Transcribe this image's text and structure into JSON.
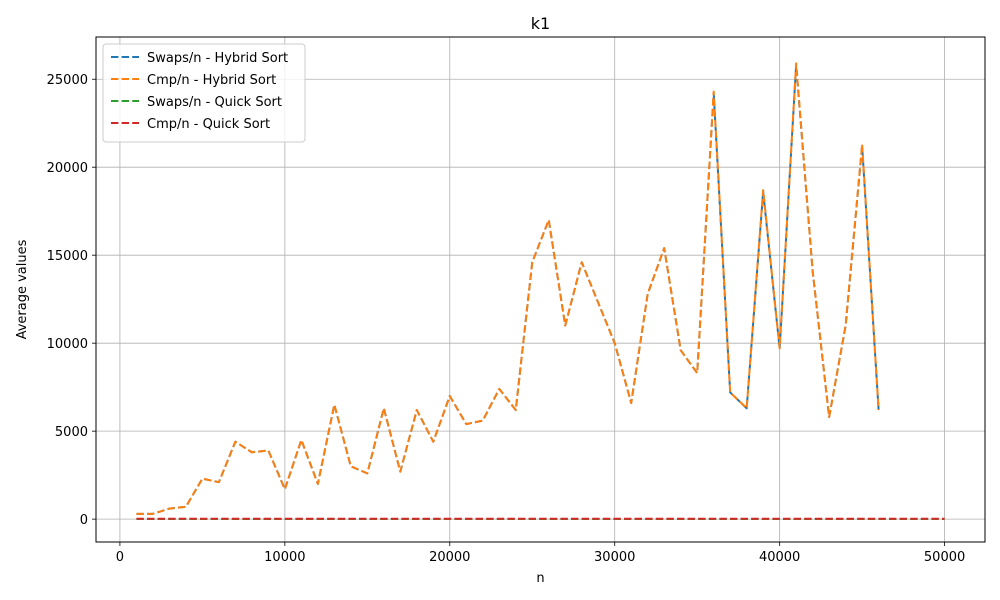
{
  "chart_data": {
    "type": "line",
    "title": "k1",
    "xlabel": "n",
    "ylabel": "Average values",
    "xlim": [
      -1450,
      52450
    ],
    "ylim": [
      -1300,
      27400
    ],
    "xticks": [
      0,
      10000,
      20000,
      30000,
      40000,
      50000
    ],
    "yticks": [
      0,
      5000,
      10000,
      15000,
      20000,
      25000
    ],
    "grid": true,
    "legend_position": "top-left",
    "series": [
      {
        "name": "Swaps/n - Hybrid Sort",
        "color": "#1f77b4",
        "style": "dashed",
        "x": [
          1000,
          2000,
          3000,
          4000,
          5000,
          6000,
          7000,
          8000,
          9000,
          10000,
          11000,
          12000,
          13000,
          14000,
          15000,
          16000,
          17000,
          18000,
          19000,
          20000,
          21000,
          22000,
          23000,
          24000,
          25000,
          26000,
          27000,
          28000,
          29000,
          30000,
          31000,
          32000,
          33000,
          34000,
          35000,
          36000,
          37000,
          38000,
          39000,
          40000,
          41000,
          42000,
          43000,
          44000,
          45000,
          46000
        ],
        "y": [
          300,
          300,
          600,
          700,
          2300,
          2100,
          4400,
          3800,
          3900,
          1700,
          4500,
          2000,
          6500,
          3000,
          2600,
          6300,
          2700,
          6200,
          4400,
          7000,
          5400,
          5600,
          7400,
          6200,
          14600,
          17000,
          11000,
          14600,
          12300,
          10000,
          6600,
          12800,
          15400,
          9600,
          8300,
          24200,
          7200,
          6300,
          18600,
          9700,
          25800,
          14100,
          5800,
          11000,
          21200,
          6200
        ]
      },
      {
        "name": "Cmp/n - Hybrid Sort",
        "color": "#ff7f0e",
        "style": "dashed",
        "x": [
          1000,
          2000,
          3000,
          4000,
          5000,
          6000,
          7000,
          8000,
          9000,
          10000,
          11000,
          12000,
          13000,
          14000,
          15000,
          16000,
          17000,
          18000,
          19000,
          20000,
          21000,
          22000,
          23000,
          24000,
          25000,
          26000,
          27000,
          28000,
          29000,
          30000,
          31000,
          32000,
          33000,
          34000,
          35000,
          36000,
          37000,
          38000,
          39000,
          40000,
          41000,
          42000,
          43000,
          44000,
          45000,
          46000
        ],
        "y": [
          300,
          300,
          600,
          700,
          2300,
          2100,
          4400,
          3800,
          3900,
          1700,
          4500,
          2000,
          6500,
          3000,
          2600,
          6300,
          2700,
          6200,
          4400,
          7000,
          5400,
          5600,
          7400,
          6200,
          14600,
          17000,
          11000,
          14600,
          12300,
          10000,
          6600,
          12800,
          15400,
          9600,
          8300,
          24300,
          7200,
          6300,
          18700,
          9700,
          25900,
          14100,
          5800,
          11000,
          21300,
          6200
        ]
      },
      {
        "name": "Swaps/n - Quick Sort",
        "color": "#2ca02c",
        "style": "dashed",
        "x": [
          1000,
          50000
        ],
        "y": [
          10,
          10
        ]
      },
      {
        "name": "Cmp/n - Quick Sort",
        "color": "#d62728",
        "style": "dashed",
        "x": [
          1000,
          50000
        ],
        "y": [
          25,
          25
        ]
      }
    ]
  }
}
